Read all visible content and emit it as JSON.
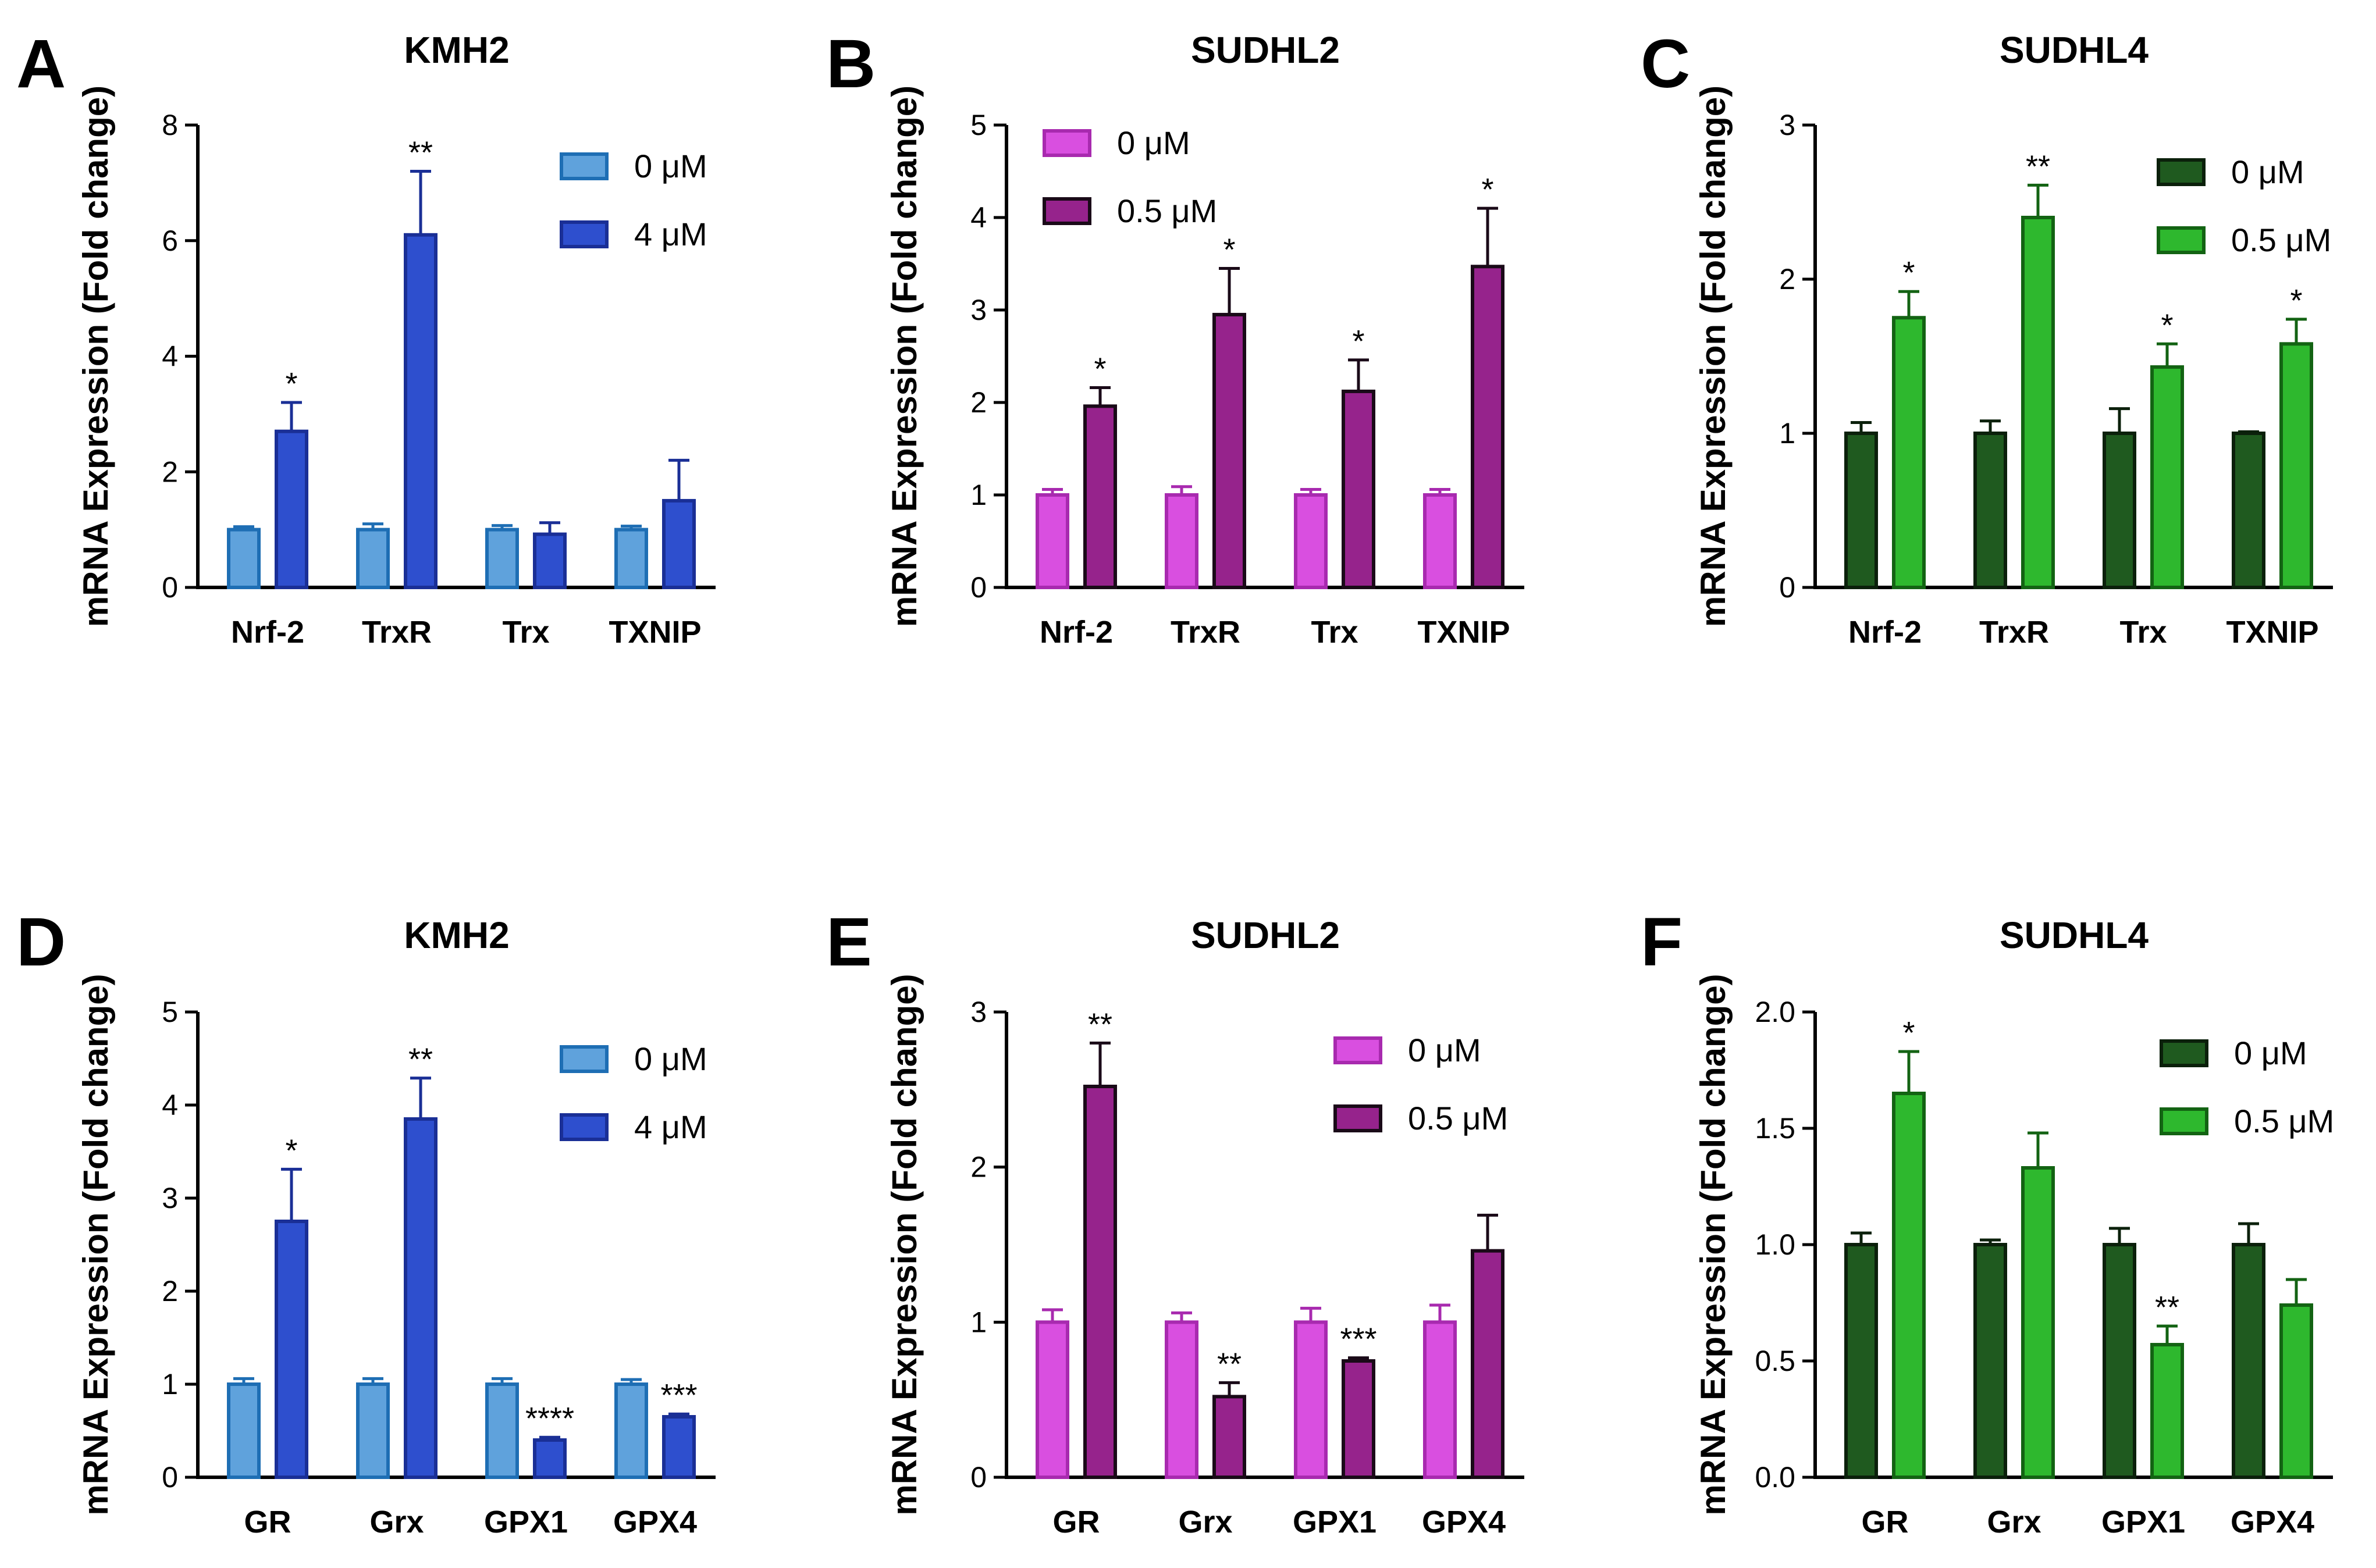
{
  "chart_data": [
    {
      "panel": "A",
      "type": "bar",
      "title": "KMH2",
      "ylabel": "mRNA Expression (Fold change)",
      "categories": [
        "Nrf-2",
        "TrxR",
        "Trx",
        "TXNIP"
      ],
      "ylim": [
        0,
        8
      ],
      "yticks": [
        "0",
        "2",
        "4",
        "6",
        "8"
      ],
      "legend_position": "top-right",
      "series": [
        {
          "name": "0 μM",
          "fill": "#5fa2dc",
          "edge": "#1e6eb4",
          "values": [
            1.0,
            1.0,
            1.0,
            1.0
          ],
          "errors": [
            0.05,
            0.1,
            0.07,
            0.06
          ],
          "sig": [
            "",
            "",
            "",
            ""
          ]
        },
        {
          "name": "4 μM",
          "fill": "#2e4fce",
          "edge": "#1a2f96",
          "values": [
            2.7,
            6.1,
            0.92,
            1.5
          ],
          "errors": [
            0.5,
            1.1,
            0.2,
            0.7
          ],
          "sig": [
            "*",
            "**",
            "",
            ""
          ]
        }
      ]
    },
    {
      "panel": "B",
      "type": "bar",
      "title": "SUDHL2",
      "ylabel": "mRNA Expression (Fold change)",
      "categories": [
        "Nrf-2",
        "TrxR",
        "Trx",
        "TXNIP"
      ],
      "ylim": [
        0,
        5
      ],
      "yticks": [
        "0",
        "1",
        "2",
        "3",
        "4",
        "5"
      ],
      "legend_position": "top-left",
      "series": [
        {
          "name": "0 μM",
          "fill": "#d94fe0",
          "edge": "#a82aaf",
          "values": [
            1.0,
            1.0,
            1.0,
            1.0
          ],
          "errors": [
            0.06,
            0.09,
            0.06,
            0.06
          ],
          "sig": [
            "",
            "",
            "",
            ""
          ]
        },
        {
          "name": "0.5 μM",
          "fill": "#96238c",
          "edge": "#1a0a18",
          "values": [
            1.96,
            2.95,
            2.12,
            3.47
          ],
          "errors": [
            0.2,
            0.5,
            0.34,
            0.63
          ],
          "sig": [
            "*",
            "*",
            "*",
            "*"
          ]
        }
      ]
    },
    {
      "panel": "C",
      "type": "bar",
      "title": "SUDHL4",
      "ylabel": "mRNA Expression (Fold change)",
      "categories": [
        "Nrf-2",
        "TrxR",
        "Trx",
        "TXNIP"
      ],
      "ylim": [
        0,
        3
      ],
      "yticks": [
        "0",
        "1",
        "2",
        "3"
      ],
      "legend_position": "top-right",
      "series": [
        {
          "name": "0 μM",
          "fill": "#1f5a1f",
          "edge": "#0b200b",
          "values": [
            1.0,
            1.0,
            1.0,
            1.0
          ],
          "errors": [
            0.07,
            0.08,
            0.16,
            0.01
          ],
          "sig": [
            "",
            "",
            "",
            ""
          ]
        },
        {
          "name": "0.5 μM",
          "fill": "#2eb82e",
          "edge": "#136313",
          "values": [
            1.75,
            2.4,
            1.43,
            1.58
          ],
          "errors": [
            0.17,
            0.21,
            0.15,
            0.16
          ],
          "sig": [
            "*",
            "**",
            "*",
            "*"
          ]
        }
      ]
    },
    {
      "panel": "D",
      "type": "bar",
      "title": "KMH2",
      "ylabel": "mRNA Expression (Fold change)",
      "categories": [
        "GR",
        "Grx",
        "GPX1",
        "GPX4"
      ],
      "ylim": [
        0,
        5
      ],
      "yticks": [
        "0",
        "1",
        "2",
        "3",
        "4",
        "5"
      ],
      "legend_position": "top-right",
      "series": [
        {
          "name": "0 μM",
          "fill": "#5fa2dc",
          "edge": "#1e6eb4",
          "values": [
            1.0,
            1.0,
            1.0,
            1.0
          ],
          "errors": [
            0.06,
            0.06,
            0.06,
            0.05
          ],
          "sig": [
            "",
            "",
            "",
            ""
          ]
        },
        {
          "name": "4 μM",
          "fill": "#2e4fce",
          "edge": "#1a2f96",
          "values": [
            2.75,
            3.85,
            0.4,
            0.65
          ],
          "errors": [
            0.56,
            0.44,
            0.03,
            0.03
          ],
          "sig": [
            "*",
            "**",
            "****",
            "***"
          ]
        }
      ]
    },
    {
      "panel": "E",
      "type": "bar",
      "title": "SUDHL2",
      "ylabel": "mRNA Expression (Fold change)",
      "categories": [
        "GR",
        "Grx",
        "GPX1",
        "GPX4"
      ],
      "ylim": [
        0,
        3
      ],
      "yticks": [
        "0",
        "1",
        "2",
        "3"
      ],
      "legend_position": "top-right",
      "series": [
        {
          "name": "0 μM",
          "fill": "#d94fe0",
          "edge": "#a82aaf",
          "values": [
            1.0,
            1.0,
            1.0,
            1.0
          ],
          "errors": [
            0.08,
            0.06,
            0.09,
            0.11
          ],
          "sig": [
            "",
            "",
            "",
            ""
          ]
        },
        {
          "name": "0.5 μM",
          "fill": "#96238c",
          "edge": "#1a0a18",
          "values": [
            2.52,
            0.52,
            0.75,
            1.46
          ],
          "errors": [
            0.28,
            0.09,
            0.02,
            0.23
          ],
          "sig": [
            "**",
            "**",
            "***",
            ""
          ]
        }
      ]
    },
    {
      "panel": "F",
      "type": "bar",
      "title": "SUDHL4",
      "ylabel": "mRNA Expression (Fold change)",
      "categories": [
        "GR",
        "Grx",
        "GPX1",
        "GPX4"
      ],
      "ylim": [
        0,
        2
      ],
      "yticks": [
        "0.0",
        "0.5",
        "1.0",
        "1.5",
        "2.0"
      ],
      "legend_position": "top-right",
      "series": [
        {
          "name": "0 μM",
          "fill": "#1f5a1f",
          "edge": "#0b200b",
          "values": [
            1.0,
            1.0,
            1.0,
            1.0
          ],
          "errors": [
            0.05,
            0.02,
            0.07,
            0.09
          ],
          "sig": [
            "",
            "",
            "",
            ""
          ]
        },
        {
          "name": "0.5 μM",
          "fill": "#2eb82e",
          "edge": "#136313",
          "values": [
            1.65,
            1.33,
            0.57,
            0.74
          ],
          "errors": [
            0.18,
            0.15,
            0.08,
            0.11
          ],
          "sig": [
            "*",
            "",
            "**",
            ""
          ]
        }
      ]
    }
  ]
}
